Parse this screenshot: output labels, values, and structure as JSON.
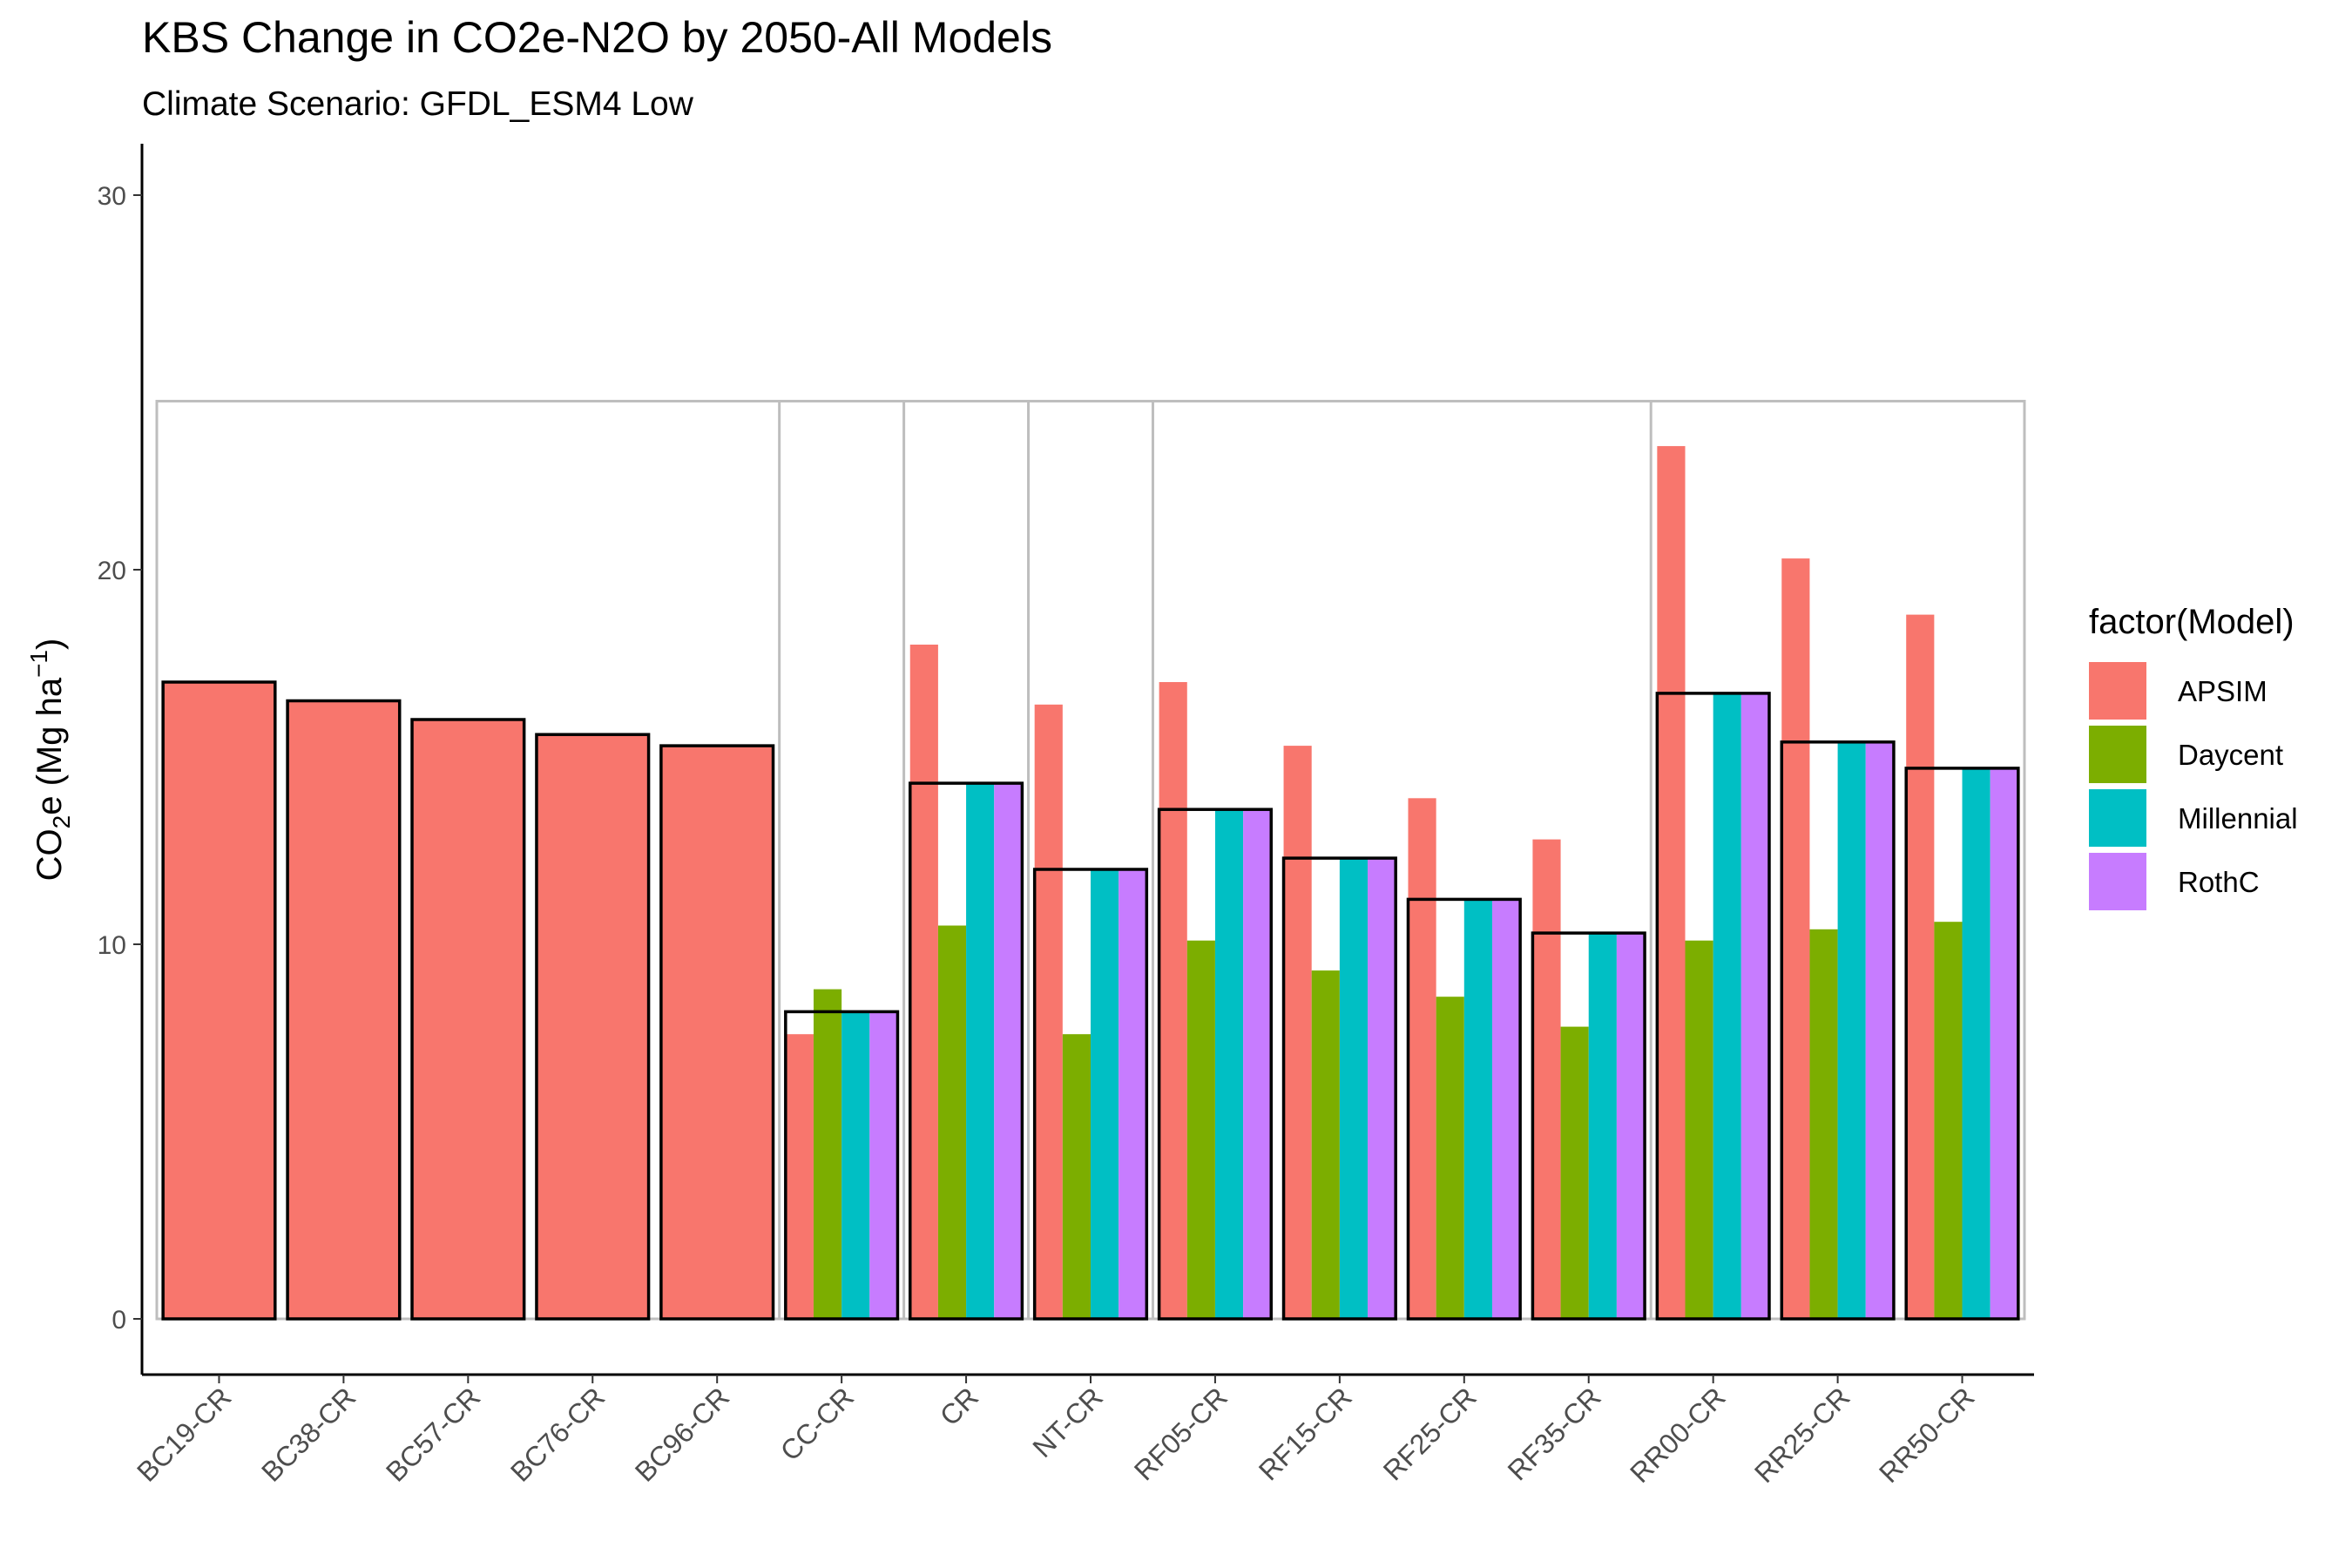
{
  "chart_data": {
    "type": "bar",
    "title": "KBS Change in CO2e-N2O by 2050-All Models",
    "subtitle": "Climate Scenario: GFDL_ESM4 Low",
    "ylabel": "CO",
    "ylabel_sub": "2",
    "ylabel_after_sub": "e (Mg ha",
    "ylabel_sup": "−1",
    "ylabel_close": ")",
    "xlabel": "",
    "ylim": [
      -1.5,
      31.5
    ],
    "yticks": [
      0,
      10,
      20,
      30
    ],
    "categories": [
      "BC19-CR",
      "BC38-CR",
      "BC57-CR",
      "BC76-CR",
      "BC96-CR",
      "CC-CR",
      "CR",
      "NT-CR",
      "RF05-CR",
      "RF15-CR",
      "RF25-CR",
      "RF35-CR",
      "RR00-CR",
      "RR25-CR",
      "RR50-CR"
    ],
    "series": [
      {
        "name": "APSIM",
        "color": "#F8766D",
        "values": [
          17.0,
          16.5,
          16.0,
          15.6,
          15.3,
          7.6,
          18.0,
          16.4,
          17.0,
          15.3,
          13.9,
          12.8,
          23.3,
          20.3,
          18.8
        ]
      },
      {
        "name": "Daycent",
        "color": "#7CAE00",
        "values": [
          null,
          null,
          null,
          null,
          null,
          8.8,
          10.5,
          7.6,
          10.1,
          9.3,
          8.6,
          7.8,
          10.1,
          10.4,
          10.6
        ]
      },
      {
        "name": "Millennial",
        "color": "#00BFC4",
        "values": [
          null,
          null,
          null,
          null,
          null,
          8.2,
          14.3,
          12.0,
          13.6,
          12.3,
          11.2,
          10.3,
          16.7,
          15.4,
          14.7
        ]
      },
      {
        "name": "RothC",
        "color": "#C77CFF",
        "values": [
          null,
          null,
          null,
          null,
          null,
          8.2,
          14.3,
          12.0,
          13.6,
          12.3,
          11.2,
          10.3,
          16.7,
          15.4,
          14.7
        ]
      }
    ],
    "mean_outline": [
      17.0,
      16.5,
      16.0,
      15.6,
      15.3,
      8.2,
      14.3,
      12.0,
      13.6,
      12.3,
      11.2,
      10.3,
      16.7,
      15.4,
      14.7
    ],
    "group_box_top": 24.5,
    "group_breaks_after": [
      "BC96-CR",
      "CC-CR",
      "CR",
      "NT-CR",
      "RF35-CR"
    ],
    "legend": {
      "title": "factor(Model)",
      "placement": "right",
      "entries": [
        "APSIM",
        "Daycent",
        "Millennial",
        "RothC"
      ]
    },
    "grid": false
  }
}
